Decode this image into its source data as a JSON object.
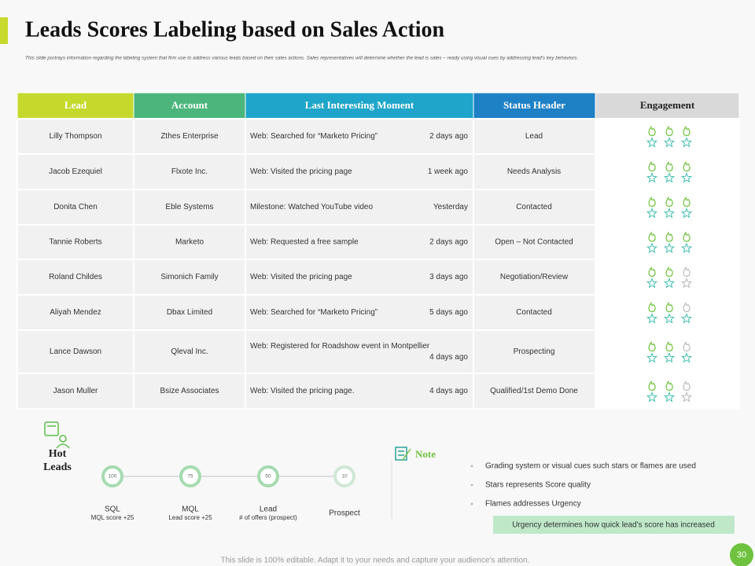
{
  "title": "Leads Scores Labeling based on Sales Action",
  "subtitle": "This slide portrays information  regarding  the labeling system that firm use to address various leads based on their sales actions. Sales representatives  will determine  whether the lead is sales – ready using visual cues by addressing  lead's key behaviors.",
  "table": {
    "columns": [
      "Lead",
      "Account",
      "Last Interesting Moment",
      "Status Header",
      "Engagement"
    ],
    "rows": [
      {
        "lead": "Lilly Thompson",
        "account": "Zthes Enterprise",
        "moment": "Web: Searched for “Marketo Pricing”",
        "time": "2 days ago",
        "status": "Lead",
        "flames": 3,
        "stars": 3
      },
      {
        "lead": "Jacob Ezequiel",
        "account": "Flxote Inc.",
        "moment": "Web: Visited the pricing page",
        "time": "1 week ago",
        "status": "Needs Analysis",
        "flames": 3,
        "stars": 3
      },
      {
        "lead": "Donita Chen",
        "account": "Eble Systems",
        "moment": "Milestone: Watched YouTube video",
        "time": "Yesterday",
        "status": "Contacted",
        "flames": 3,
        "stars": 3
      },
      {
        "lead": "Tannie Roberts",
        "account": "Marketo",
        "moment": "Web: Requested a free sample",
        "time": "2 days ago",
        "status": "Open – Not Contacted",
        "flames": 3,
        "stars": 3
      },
      {
        "lead": "Roland Childes",
        "account": "Simonich Family",
        "moment": "Web: Visited the pricing page",
        "time": "3 days ago",
        "status": "Negotiation/Review",
        "flames": 2,
        "stars": 2
      },
      {
        "lead": "Aliyah Mendez",
        "account": "Dbax Limited",
        "moment": "Web: Searched for “Marketo Pricing”",
        "time": "5 days ago",
        "status": "Contacted",
        "flames": 2,
        "stars": 3
      },
      {
        "lead": "Lance Dawson",
        "account": "Qleval Inc.",
        "moment": "Web: Registered for Roadshow event in Montpellier",
        "time": "4 days ago",
        "status": "Prospecting",
        "flames": 2,
        "stars": 3
      },
      {
        "lead": "Jason Muller",
        "account": "Bsize Associates",
        "moment": "Web: Visited the pricing page.",
        "time": "4 days ago",
        "status": "Qualified/1st Demo Done",
        "flames": 2,
        "stars": 2
      }
    ]
  },
  "hot_leads": {
    "title": "Hot Leads",
    "stages": [
      {
        "value": 100,
        "name": "SQL",
        "detail": "MQL score +25"
      },
      {
        "value": 75,
        "name": "MQL",
        "detail": "Lead score +25"
      },
      {
        "value": 50,
        "name": "Lead",
        "detail": "# of offers (prospect)"
      },
      {
        "value": 10,
        "name": "Prospect"
      }
    ]
  },
  "note": {
    "title": "Note",
    "bullets": [
      "Grading system or visual cues such stars or flames are used",
      "Stars represents Score quality",
      "Flames addresses Urgency"
    ],
    "highlight": "Urgency determines  how quick lead's score has increased"
  },
  "footer": "This slide is 100% editable. Adapt it to your needs and capture your audience's attention.",
  "page_number": 30
}
